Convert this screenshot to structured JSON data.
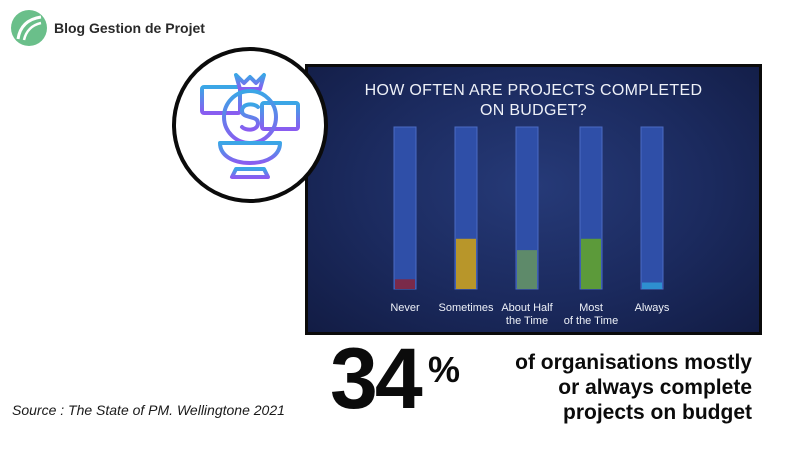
{
  "brand": {
    "name": "Blog Gestion de Projet",
    "color": "#6abf8a"
  },
  "icon": {
    "name": "money-bag-trophy-icon",
    "colors": [
      "#3aa7e6",
      "#8a5cf0"
    ]
  },
  "chart_data": {
    "type": "bar",
    "title": "HOW OFTEN ARE PROJECTS COMPLETED\nON BUDGET?",
    "categories": [
      "Never",
      "Sometimes",
      "About Half\nthe Time",
      "Most\nof the Time",
      "Always"
    ],
    "values": [
      6,
      31,
      24,
      31,
      4
    ],
    "ylim": [
      0,
      100
    ],
    "colors": [
      "#7a2a4a",
      "#b8962a",
      "#5e8a6a",
      "#5c9a3a",
      "#2e8fd0"
    ],
    "track_color": "#2f4fa8"
  },
  "headline": {
    "number": "34",
    "sign": "%",
    "text": "of organisations mostly\nor always complete\nprojects on budget"
  },
  "source": "Source : The State of PM. Wellingtone 2021"
}
